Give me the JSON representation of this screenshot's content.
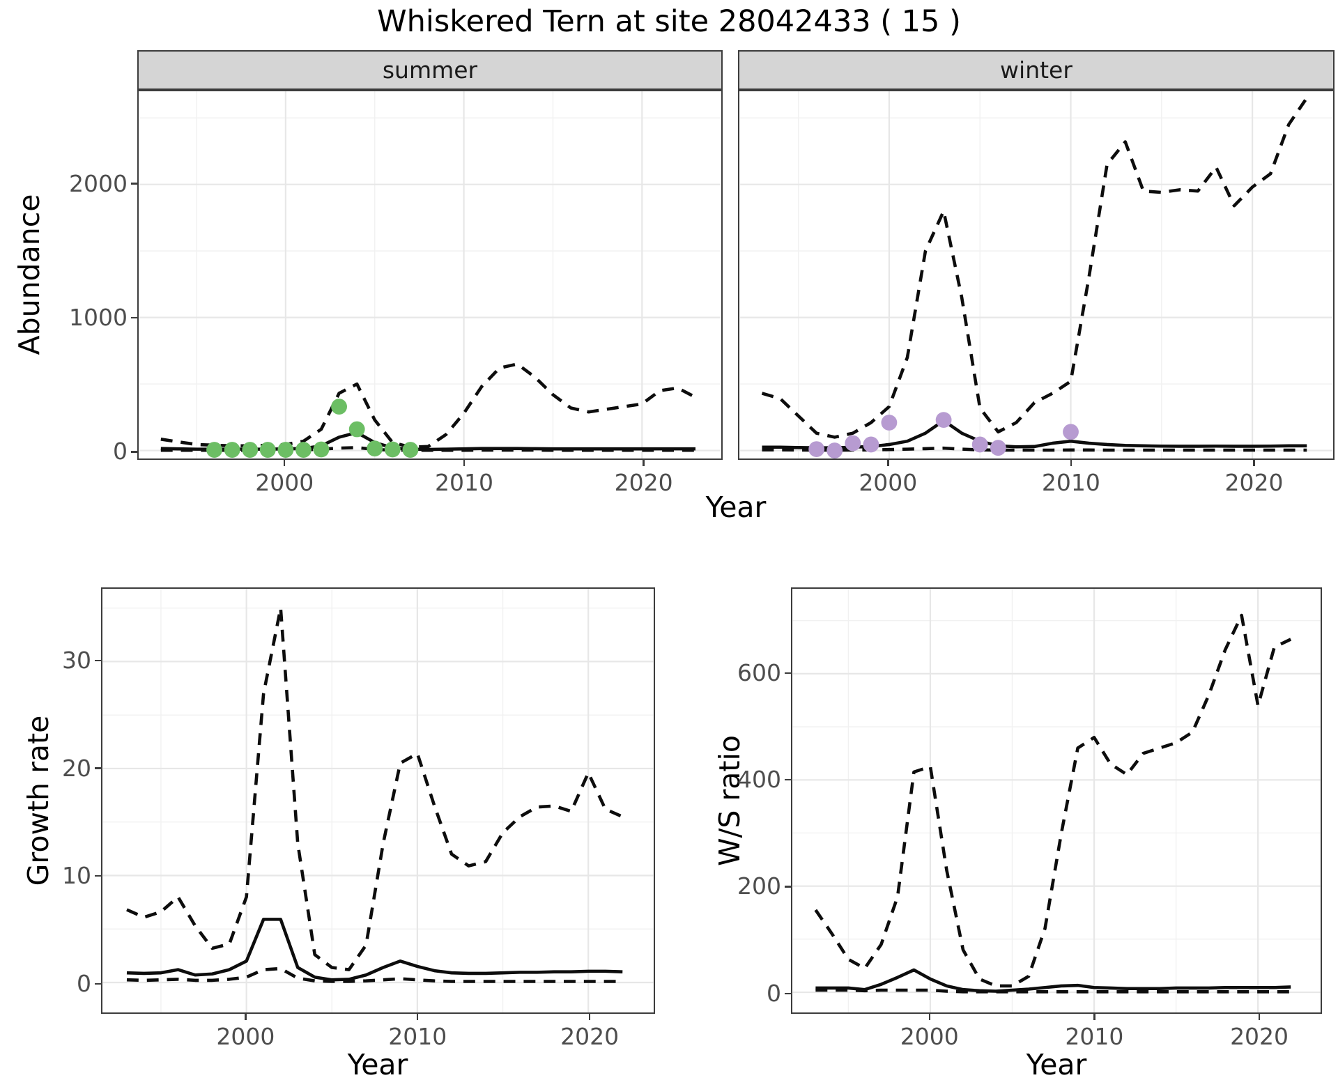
{
  "title": "Whiskered Tern at site 28042433 ( 15 )",
  "top_figure": {
    "xlabel": "Year",
    "ylabel": "Abundance",
    "facets": [
      "summer",
      "winter"
    ]
  },
  "colors": {
    "summer_points": "#6cbe64",
    "winter_points": "#b79bd1",
    "line": "#0d0d0d",
    "strip_bg": "#d5d5d5",
    "panel_border": "#3c3c3c",
    "grid_major": "#e7e7e7",
    "grid_minor": "#f1f1f1",
    "tick_label": "#4d4d4d"
  },
  "chart_data": [
    {
      "id": "abundance-summer",
      "type": "line",
      "facet": "summer",
      "xlabel": "Year",
      "ylabel": "Abundance",
      "xlim": [
        1991.8,
        2024.4
      ],
      "ylim": [
        -60,
        2700
      ],
      "xticks": [
        2000,
        2010,
        2020
      ],
      "yticks": [
        0,
        1000,
        2000
      ],
      "grid": true,
      "series": [
        {
          "name": "upper-ci",
          "style": "dashed",
          "x": [
            1993,
            1994,
            1995,
            1996,
            1997,
            1998,
            1999,
            2000,
            2001,
            2002,
            2003,
            2004,
            2005,
            2006,
            2007,
            2008,
            2009,
            2010,
            2011,
            2012,
            2013,
            2014,
            2015,
            2016,
            2017,
            2018,
            2019,
            2020,
            2021,
            2022,
            2023
          ],
          "y": [
            85,
            65,
            45,
            40,
            35,
            35,
            40,
            45,
            70,
            160,
            430,
            500,
            230,
            60,
            25,
            30,
            120,
            280,
            480,
            620,
            650,
            550,
            420,
            320,
            290,
            310,
            330,
            350,
            450,
            470,
            400
          ]
        },
        {
          "name": "lower-ci",
          "style": "dashed",
          "x": [
            1993,
            1994,
            1995,
            1996,
            1997,
            1998,
            1999,
            2000,
            2001,
            2002,
            2003,
            2004,
            2005,
            2006,
            2007,
            2008,
            2009,
            2010,
            2011,
            2012,
            2013,
            2014,
            2015,
            2016,
            2017,
            2018,
            2019,
            2020,
            2021,
            2022,
            2023
          ],
          "y": [
            2,
            2,
            2,
            2,
            2,
            2,
            2,
            3,
            5,
            10,
            18,
            22,
            8,
            3,
            2,
            2,
            2,
            2,
            3,
            3,
            3,
            3,
            2,
            2,
            2,
            2,
            2,
            2,
            2,
            2,
            2
          ]
        },
        {
          "name": "estimate",
          "style": "solid",
          "x": [
            1993,
            1994,
            1995,
            1996,
            1997,
            1998,
            1999,
            2000,
            2001,
            2002,
            2003,
            2004,
            2005,
            2006,
            2007,
            2008,
            2009,
            2010,
            2011,
            2012,
            2013,
            2014,
            2015,
            2016,
            2017,
            2018,
            2019,
            2020,
            2021,
            2022,
            2023
          ],
          "y": [
            15,
            12,
            10,
            10,
            10,
            10,
            10,
            12,
            15,
            35,
            100,
            135,
            60,
            20,
            10,
            8,
            10,
            12,
            15,
            15,
            15,
            14,
            12,
            12,
            12,
            12,
            12,
            12,
            13,
            13,
            12
          ]
        }
      ],
      "points": [
        {
          "name": "observed-counts",
          "color_key": "summer_points",
          "x": [
            1996,
            1997,
            1998,
            1999,
            2000,
            2001,
            2002,
            2003,
            2004,
            2005,
            2006,
            2007
          ],
          "y": [
            5,
            5,
            5,
            5,
            5,
            5,
            8,
            330,
            160,
            15,
            8,
            5
          ]
        }
      ]
    },
    {
      "id": "abundance-winter",
      "type": "line",
      "facet": "winter",
      "xlabel": "Year",
      "ylabel": "Abundance",
      "xlim": [
        1991.8,
        2024.4
      ],
      "ylim": [
        -60,
        2700
      ],
      "xticks": [
        2000,
        2010,
        2020
      ],
      "yticks": [
        0,
        1000,
        2000
      ],
      "grid": true,
      "series": [
        {
          "name": "upper-ci",
          "style": "dashed",
          "x": [
            1993,
            1994,
            1995,
            1996,
            1997,
            1998,
            1999,
            2000,
            2001,
            2002,
            2003,
            2004,
            2005,
            2006,
            2007,
            2008,
            2009,
            2010,
            2011,
            2012,
            2013,
            2014,
            2015,
            2016,
            2017,
            2018,
            2019,
            2020,
            2021,
            2022,
            2023
          ],
          "y": [
            430,
            390,
            260,
            130,
            100,
            130,
            210,
            330,
            700,
            1500,
            1800,
            1150,
            320,
            140,
            210,
            360,
            430,
            520,
            1300,
            2150,
            2320,
            1950,
            1940,
            1960,
            1950,
            2130,
            1840,
            1980,
            2080,
            2450,
            2650
          ]
        },
        {
          "name": "lower-ci",
          "style": "dashed",
          "x": [
            1993,
            1994,
            1995,
            1996,
            1997,
            1998,
            1999,
            2000,
            2001,
            2002,
            2003,
            2004,
            2005,
            2006,
            2007,
            2008,
            2009,
            2010,
            2011,
            2012,
            2013,
            2014,
            2015,
            2016,
            2017,
            2018,
            2019,
            2020,
            2021,
            2022,
            2023
          ],
          "y": [
            5,
            5,
            4,
            3,
            3,
            4,
            5,
            7,
            10,
            14,
            18,
            10,
            5,
            3,
            3,
            3,
            3,
            4,
            4,
            3,
            3,
            3,
            3,
            3,
            3,
            3,
            3,
            3,
            3,
            3,
            3
          ]
        },
        {
          "name": "estimate",
          "style": "solid",
          "x": [
            1993,
            1994,
            1995,
            1996,
            1997,
            1998,
            1999,
            2000,
            2001,
            2002,
            2003,
            2004,
            2005,
            2006,
            2007,
            2008,
            2009,
            2010,
            2011,
            2012,
            2013,
            2014,
            2015,
            2016,
            2017,
            2018,
            2019,
            2020,
            2021,
            2022,
            2023
          ],
          "y": [
            25,
            25,
            22,
            20,
            20,
            25,
            30,
            45,
            70,
            130,
            225,
            130,
            70,
            35,
            28,
            30,
            55,
            70,
            55,
            45,
            38,
            35,
            33,
            32,
            32,
            33,
            32,
            32,
            33,
            35,
            35
          ]
        }
      ],
      "points": [
        {
          "name": "observed-counts",
          "color_key": "winter_points",
          "x": [
            1996,
            1997,
            1998,
            1999,
            2000,
            2003,
            2005,
            2006,
            2010
          ],
          "y": [
            10,
            0,
            55,
            45,
            210,
            230,
            45,
            20,
            140
          ]
        }
      ]
    },
    {
      "id": "growth-rate",
      "type": "line",
      "facet": "",
      "xlabel": "Year",
      "ylabel": "Growth rate",
      "xlim": [
        1991.6,
        2023.8
      ],
      "ylim": [
        -2.8,
        36.8
      ],
      "xticks": [
        2000,
        2010,
        2020
      ],
      "yticks": [
        0,
        10,
        20,
        30
      ],
      "grid": true,
      "series": [
        {
          "name": "upper-ci",
          "style": "dashed",
          "x": [
            1993,
            1994,
            1995,
            1996,
            1997,
            1998,
            1999,
            2000,
            2001,
            2002,
            2003,
            2004,
            2005,
            2006,
            2007,
            2008,
            2009,
            2010,
            2011,
            2012,
            2013,
            2014,
            2015,
            2016,
            2017,
            2018,
            2019,
            2020,
            2021,
            2022
          ],
          "y": [
            6.8,
            6.1,
            6.6,
            8.0,
            5.3,
            3.2,
            3.6,
            8,
            27,
            35,
            13,
            2.6,
            1.4,
            1.2,
            3.5,
            13,
            20.5,
            21.4,
            16.5,
            12,
            10.9,
            11.3,
            14,
            15.5,
            16.4,
            16.5,
            16,
            19.6,
            16.2,
            15.5
          ]
        },
        {
          "name": "lower-ci",
          "style": "dashed",
          "x": [
            1993,
            1994,
            1995,
            1996,
            1997,
            1998,
            1999,
            2000,
            2001,
            2002,
            2003,
            2004,
            2005,
            2006,
            2007,
            2008,
            2009,
            2010,
            2011,
            2012,
            2013,
            2014,
            2015,
            2016,
            2017,
            2018,
            2019,
            2020,
            2021,
            2022
          ],
          "y": [
            0.25,
            0.2,
            0.25,
            0.3,
            0.2,
            0.2,
            0.3,
            0.5,
            1.2,
            1.3,
            0.4,
            0.15,
            0.1,
            0.1,
            0.15,
            0.25,
            0.35,
            0.25,
            0.15,
            0.1,
            0.1,
            0.1,
            0.1,
            0.1,
            0.1,
            0.1,
            0.1,
            0.1,
            0.1,
            0.1
          ]
        },
        {
          "name": "estimate",
          "style": "solid",
          "x": [
            1993,
            1994,
            1995,
            1996,
            1997,
            1998,
            1999,
            2000,
            2001,
            2002,
            2003,
            2004,
            2005,
            2006,
            2007,
            2008,
            2009,
            2010,
            2011,
            2012,
            2013,
            2014,
            2015,
            2016,
            2017,
            2018,
            2019,
            2020,
            2021,
            2022
          ],
          "y": [
            0.9,
            0.85,
            0.9,
            1.2,
            0.7,
            0.8,
            1.2,
            2.0,
            5.9,
            5.9,
            1.4,
            0.5,
            0.25,
            0.3,
            0.7,
            1.4,
            2.0,
            1.5,
            1.1,
            0.9,
            0.85,
            0.85,
            0.9,
            0.95,
            0.95,
            1.0,
            1.0,
            1.05,
            1.05,
            1.0
          ]
        }
      ],
      "points": []
    },
    {
      "id": "ws-ratio",
      "type": "line",
      "facet": "",
      "xlabel": "Year",
      "ylabel": "W/S ratio",
      "xlim": [
        1991.6,
        2023.8
      ],
      "ylim": [
        -38,
        760
      ],
      "xticks": [
        2000,
        2010,
        2020
      ],
      "yticks": [
        0,
        200,
        400,
        600
      ],
      "grid": true,
      "series": [
        {
          "name": "upper-ci",
          "style": "dashed",
          "x": [
            1993,
            1994,
            1995,
            1996,
            1997,
            1998,
            1999,
            2000,
            2001,
            2002,
            2003,
            2004,
            2005,
            2006,
            2007,
            2008,
            2009,
            2010,
            2011,
            2012,
            2013,
            2014,
            2015,
            2016,
            2017,
            2018,
            2019,
            2020,
            2021,
            2022
          ],
          "y": [
            155,
            110,
            62,
            45,
            90,
            180,
            415,
            425,
            230,
            80,
            25,
            12,
            12,
            30,
            120,
            300,
            460,
            480,
            430,
            410,
            450,
            460,
            470,
            490,
            560,
            645,
            710,
            540,
            650,
            665
          ]
        },
        {
          "name": "lower-ci",
          "style": "dashed",
          "x": [
            1993,
            1994,
            1995,
            1996,
            1997,
            1998,
            1999,
            2000,
            2001,
            2002,
            2003,
            2004,
            2005,
            2006,
            2007,
            2008,
            2009,
            2010,
            2011,
            2012,
            2013,
            2014,
            2015,
            2016,
            2017,
            2018,
            2019,
            2020,
            2021,
            2022
          ],
          "y": [
            4,
            4,
            4,
            3,
            4,
            4,
            4,
            4,
            2,
            1,
            1,
            1,
            1,
            1,
            1,
            1,
            1,
            1,
            1,
            1,
            1,
            1,
            1,
            1,
            1,
            1,
            1,
            1,
            1,
            1
          ]
        },
        {
          "name": "estimate",
          "style": "solid",
          "x": [
            1993,
            1994,
            1995,
            1996,
            1997,
            1998,
            1999,
            2000,
            2001,
            2002,
            2003,
            2004,
            2005,
            2006,
            2007,
            2008,
            2009,
            2010,
            2011,
            2012,
            2013,
            2014,
            2015,
            2016,
            2017,
            2018,
            2019,
            2020,
            2021,
            2022
          ],
          "y": [
            8,
            8,
            8,
            5,
            15,
            28,
            42,
            25,
            12,
            5,
            3,
            2,
            4,
            6,
            9,
            12,
            13,
            9,
            8,
            7,
            7,
            7,
            8,
            8,
            8,
            9,
            9,
            9,
            9,
            10
          ]
        }
      ],
      "points": []
    }
  ]
}
